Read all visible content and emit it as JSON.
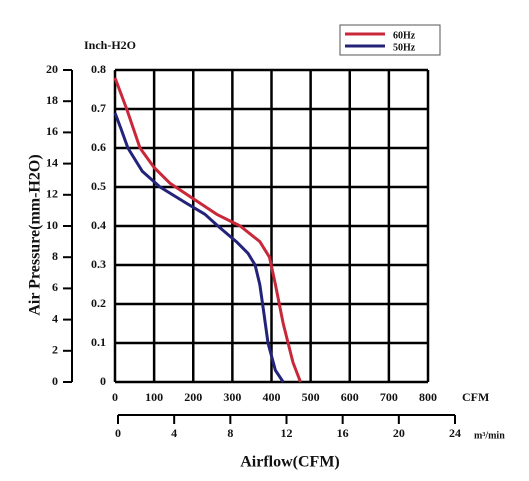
{
  "chart_data": {
    "type": "line",
    "y_label": "Air Pressure(mm-H2O)",
    "y_unit_label": "Inch-H2O",
    "x_label": "Airflow(CFM)",
    "x_unit_label": "CFM",
    "x2_unit_label": "m³/min",
    "xlim": [
      0,
      800
    ],
    "xticks": [
      0,
      100,
      200,
      300,
      400,
      500,
      600,
      700,
      800
    ],
    "ylim": [
      0,
      0.8
    ],
    "yticks": [
      0,
      0.1,
      0.2,
      0.3,
      0.4,
      0.5,
      0.6,
      0.7,
      0.8
    ],
    "y2lim": [
      0,
      20
    ],
    "y2ticks": [
      0,
      2,
      4,
      6,
      8,
      10,
      12,
      14,
      16,
      18,
      20
    ],
    "x2lim": [
      0,
      24
    ],
    "x2ticks": [
      0,
      4,
      8,
      12,
      16,
      20,
      24
    ],
    "grid": true,
    "legend": "top-right",
    "series": [
      {
        "name": "60Hz",
        "color": "#c8283a",
        "x": [
          0,
          30,
          64,
          100,
          140,
          200,
          260,
          320,
          370,
          395,
          410,
          430,
          455,
          474
        ],
        "values": [
          0.78,
          0.7,
          0.6,
          0.55,
          0.51,
          0.47,
          0.43,
          0.4,
          0.36,
          0.32,
          0.25,
          0.15,
          0.05,
          0
        ]
      },
      {
        "name": "50Hz",
        "color": "#23237a",
        "x": [
          0,
          15,
          33,
          70,
          115,
          180,
          230,
          263,
          310,
          340,
          358,
          370,
          380,
          391,
          410,
          430
        ],
        "values": [
          0.69,
          0.65,
          0.6,
          0.54,
          0.5,
          0.46,
          0.43,
          0.4,
          0.36,
          0.33,
          0.3,
          0.25,
          0.18,
          0.1,
          0.03,
          0
        ]
      }
    ]
  }
}
